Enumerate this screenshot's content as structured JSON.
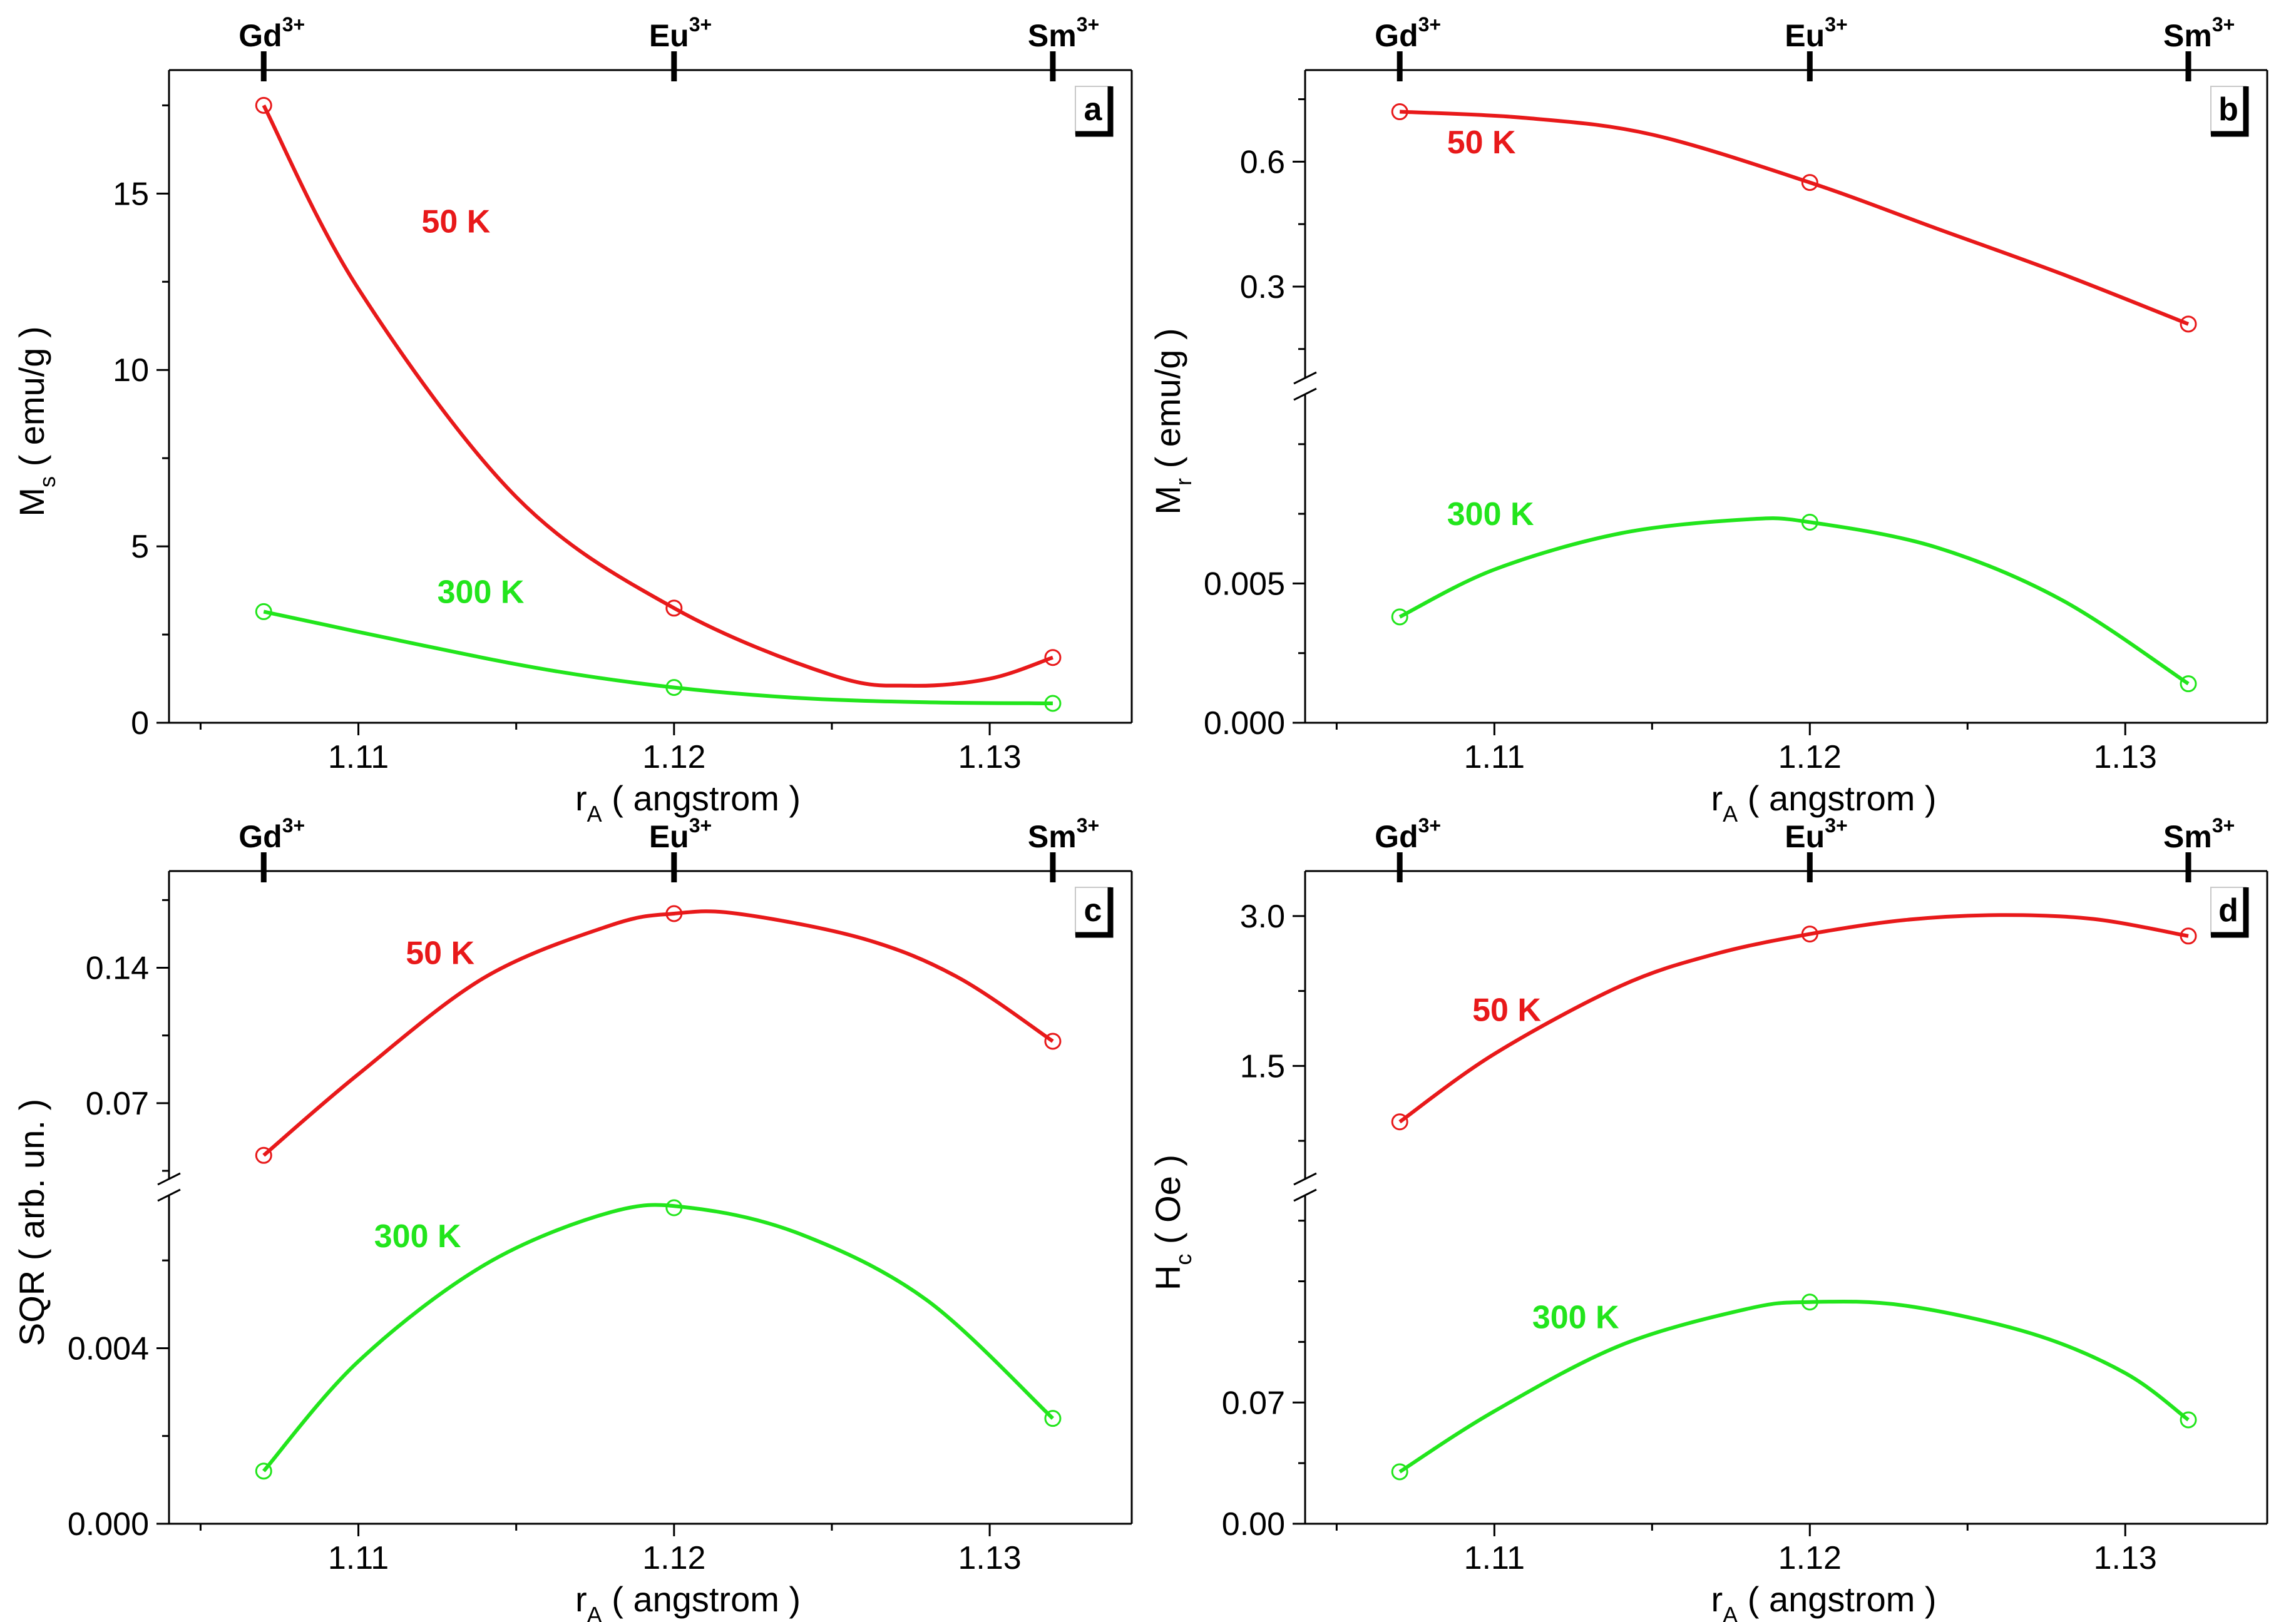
{
  "figure": {
    "description_free": true
  },
  "chart_data": [
    {
      "type": "line",
      "panel": "a",
      "ylabel": "M",
      "ylabel_sub": "s",
      "ylabel_unit": " ( emu/g )",
      "xlabel": "r",
      "xlabel_sub": "A",
      "xlabel_unit": " ( angstrom )",
      "xlim": [
        1.104,
        1.1345
      ],
      "ylim": [
        0,
        18.5
      ],
      "xticks": [
        1.11,
        1.12,
        1.13
      ],
      "xtick_labels": [
        "1.11",
        "1.12",
        "1.13"
      ],
      "yticks": [
        0,
        5,
        10,
        15
      ],
      "ytick_labels": [
        "0",
        "5",
        "10",
        "15"
      ],
      "top_axis": [
        {
          "label": "Gd",
          "sup": "3+",
          "x": 1.107
        },
        {
          "label": "Eu",
          "sup": "3+",
          "x": 1.12
        },
        {
          "label": "Sm",
          "sup": "3+",
          "x": 1.132
        }
      ],
      "break": null,
      "series": [
        {
          "name": "50 K",
          "color": "#e8191a",
          "x": [
            1.107,
            1.12,
            1.132
          ],
          "y": [
            17.5,
            3.25,
            1.85
          ],
          "curve": [
            [
              1.107,
              17.5
            ],
            [
              1.11,
              12.3
            ],
            [
              1.115,
              6.4
            ],
            [
              1.12,
              3.25
            ],
            [
              1.125,
              1.35
            ],
            [
              1.1275,
              1.05
            ],
            [
              1.13,
              1.25
            ],
            [
              1.132,
              1.85
            ]
          ]
        },
        {
          "name": "300 K",
          "color": "#22e51c",
          "x": [
            1.107,
            1.12,
            1.132
          ],
          "y": [
            3.15,
            1.0,
            0.55
          ],
          "curve": [
            [
              1.107,
              3.15
            ],
            [
              1.112,
              2.2
            ],
            [
              1.116,
              1.5
            ],
            [
              1.12,
              1.0
            ],
            [
              1.124,
              0.7
            ],
            [
              1.128,
              0.58
            ],
            [
              1.132,
              0.55
            ]
          ]
        }
      ],
      "annotations": [
        {
          "text": "50 K",
          "color": "#e8191a",
          "x": 1.112,
          "y": 13.9
        },
        {
          "text": "300 K",
          "color": "#22e51c",
          "x": 1.1125,
          "y": 3.4
        }
      ]
    },
    {
      "type": "line",
      "panel": "b",
      "ylabel": "M",
      "ylabel_sub": "r",
      "ylabel_unit": " ( emu/g )",
      "xlabel": "r",
      "xlabel_sub": "A",
      "xlabel_unit": " ( angstrom )",
      "xlim": [
        1.104,
        1.1345
      ],
      "xticks": [
        1.11,
        1.12,
        1.13
      ],
      "xtick_labels": [
        "1.11",
        "1.12",
        "1.13"
      ],
      "top_axis": [
        {
          "label": "Gd",
          "sup": "3+",
          "x": 1.107
        },
        {
          "label": "Eu",
          "sup": "3+",
          "x": 1.12
        },
        {
          "label": "Sm",
          "sup": "3+",
          "x": 1.132
        }
      ],
      "upper": {
        "ylim": [
          0.1,
          0.82
        ],
        "yticks": [
          0.3,
          0.6
        ],
        "ytick_labels": [
          "0.3",
          "0.6"
        ]
      },
      "lower": {
        "ylim": [
          0,
          0.0115
        ],
        "yticks": [
          0,
          0.005
        ],
        "ytick_labels": [
          "0.000",
          "0.005"
        ]
      },
      "series": [
        {
          "name": "50 K",
          "color": "#e8191a",
          "segment": "upper",
          "x": [
            1.107,
            1.12,
            1.132
          ],
          "y": [
            0.72,
            0.55,
            0.21
          ],
          "curve": [
            [
              1.107,
              0.72
            ],
            [
              1.111,
              0.705
            ],
            [
              1.115,
              0.665
            ],
            [
              1.12,
              0.55
            ],
            [
              1.124,
              0.44
            ],
            [
              1.128,
              0.33
            ],
            [
              1.132,
              0.21
            ]
          ]
        },
        {
          "name": "300 K",
          "color": "#22e51c",
          "segment": "lower",
          "x": [
            1.107,
            1.12,
            1.132
          ],
          "y": [
            0.0038,
            0.0072,
            0.0014
          ],
          "curve": [
            [
              1.107,
              0.0038
            ],
            [
              1.11,
              0.0055
            ],
            [
              1.114,
              0.0068
            ],
            [
              1.118,
              0.0073
            ],
            [
              1.12,
              0.0072
            ],
            [
              1.124,
              0.0063
            ],
            [
              1.128,
              0.0044
            ],
            [
              1.132,
              0.0014
            ]
          ]
        }
      ],
      "annotations": [
        {
          "text": "50 K",
          "color": "#e8191a",
          "segment": "upper",
          "x": 1.1085,
          "y": 0.62
        },
        {
          "text": "300 K",
          "color": "#22e51c",
          "segment": "lower",
          "x": 1.1085,
          "y": 0.0071
        }
      ]
    },
    {
      "type": "line",
      "panel": "c",
      "ylabel": "SQR ( arb. un. )",
      "ylabel_sub": "",
      "ylabel_unit": "",
      "xlabel": "r",
      "xlabel_sub": "A",
      "xlabel_unit": " ( angstrom )",
      "xlim": [
        1.104,
        1.1345
      ],
      "xticks": [
        1.11,
        1.12,
        1.13
      ],
      "xtick_labels": [
        "1.11",
        "1.12",
        "1.13"
      ],
      "top_axis": [
        {
          "label": "Gd",
          "sup": "3+",
          "x": 1.107
        },
        {
          "label": "Eu",
          "sup": "3+",
          "x": 1.12
        },
        {
          "label": "Sm",
          "sup": "3+",
          "x": 1.132
        }
      ],
      "upper": {
        "ylim": [
          0.035,
          0.19
        ],
        "yticks": [
          0.07,
          0.14
        ],
        "ytick_labels": [
          "0.07",
          "0.14"
        ]
      },
      "lower": {
        "ylim": [
          0,
          0.0073
        ],
        "yticks": [
          0,
          0.004
        ],
        "ytick_labels": [
          "0.000",
          "0.004"
        ]
      },
      "series": [
        {
          "name": "50 K",
          "color": "#e8191a",
          "segment": "upper",
          "x": [
            1.107,
            1.12,
            1.132
          ],
          "y": [
            0.043,
            0.168,
            0.102
          ],
          "curve": [
            [
              1.107,
              0.043
            ],
            [
              1.11,
              0.085
            ],
            [
              1.114,
              0.135
            ],
            [
              1.118,
              0.162
            ],
            [
              1.12,
              0.168
            ],
            [
              1.122,
              0.168
            ],
            [
              1.126,
              0.155
            ],
            [
              1.129,
              0.135
            ],
            [
              1.132,
              0.102
            ]
          ]
        },
        {
          "name": "300 K",
          "color": "#22e51c",
          "segment": "lower",
          "x": [
            1.107,
            1.12,
            1.132
          ],
          "y": [
            0.0012,
            0.0072,
            0.0024
          ],
          "curve": [
            [
              1.107,
              0.0012
            ],
            [
              1.11,
              0.0037
            ],
            [
              1.114,
              0.0059
            ],
            [
              1.118,
              0.0071
            ],
            [
              1.1205,
              0.0072
            ],
            [
              1.124,
              0.0066
            ],
            [
              1.128,
              0.0051
            ],
            [
              1.132,
              0.0024
            ]
          ]
        }
      ],
      "annotations": [
        {
          "text": "50 K",
          "color": "#e8191a",
          "segment": "upper",
          "x": 1.1115,
          "y": 0.142
        },
        {
          "text": "300 K",
          "color": "#22e51c",
          "segment": "lower",
          "x": 1.1105,
          "y": 0.0063
        }
      ]
    },
    {
      "type": "line",
      "panel": "d",
      "ylabel": "H",
      "ylabel_sub": "c",
      "ylabel_unit": " ( Oe )",
      "xlabel": "r",
      "xlabel_sub": "A",
      "xlabel_unit": " ( angstrom )",
      "xlim": [
        1.104,
        1.1345
      ],
      "xticks": [
        1.11,
        1.12,
        1.13
      ],
      "xtick_labels": [
        "1.11",
        "1.12",
        "1.13"
      ],
      "top_axis": [
        {
          "label": "Gd",
          "sup": "3+",
          "x": 1.107
        },
        {
          "label": "Eu",
          "sup": "3+",
          "x": 1.12
        },
        {
          "label": "Sm",
          "sup": "3+",
          "x": 1.132
        }
      ],
      "upper": {
        "ylim": [
          0.45,
          3.45
        ],
        "yticks": [
          1.5,
          3.0
        ],
        "ytick_labels": [
          "1.5",
          "3.0"
        ]
      },
      "lower": {
        "ylim": [
          0,
          0.185
        ],
        "yticks": [
          0,
          0.07
        ],
        "ytick_labels": [
          "0.00",
          "0.07"
        ]
      },
      "series": [
        {
          "name": "50 K",
          "color": "#e8191a",
          "segment": "upper",
          "x": [
            1.107,
            1.12,
            1.132
          ],
          "y": [
            0.94,
            2.82,
            2.8
          ],
          "curve": [
            [
              1.107,
              0.94
            ],
            [
              1.11,
              1.62
            ],
            [
              1.114,
              2.3
            ],
            [
              1.117,
              2.62
            ],
            [
              1.12,
              2.82
            ],
            [
              1.123,
              2.96
            ],
            [
              1.126,
              3.01
            ],
            [
              1.129,
              2.97
            ],
            [
              1.132,
              2.8
            ]
          ]
        },
        {
          "name": "300 K",
          "color": "#22e51c",
          "segment": "lower",
          "x": [
            1.107,
            1.12,
            1.132
          ],
          "y": [
            0.03,
            0.128,
            0.06
          ],
          "curve": [
            [
              1.107,
              0.03
            ],
            [
              1.11,
              0.065
            ],
            [
              1.114,
              0.103
            ],
            [
              1.118,
              0.124
            ],
            [
              1.12,
              0.128
            ],
            [
              1.123,
              0.126
            ],
            [
              1.127,
              0.11
            ],
            [
              1.13,
              0.087
            ],
            [
              1.132,
              0.06
            ]
          ]
        }
      ],
      "annotations": [
        {
          "text": "50 K",
          "color": "#e8191a",
          "segment": "upper",
          "x": 1.1093,
          "y": 1.95
        },
        {
          "text": "300 K",
          "color": "#22e51c",
          "segment": "lower",
          "x": 1.1112,
          "y": 0.113
        }
      ]
    }
  ]
}
